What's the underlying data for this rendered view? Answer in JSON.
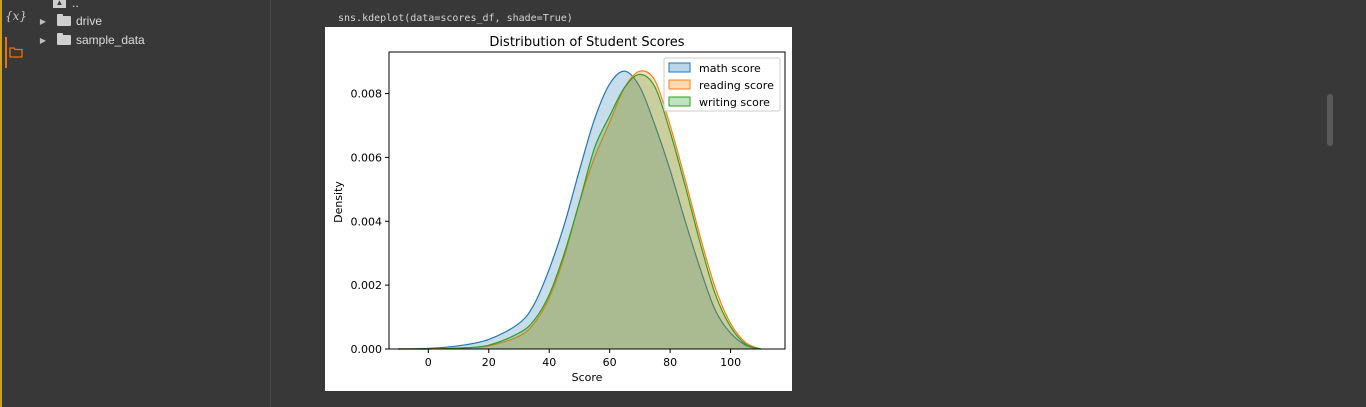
{
  "rail": {
    "variables_icon": "{x}",
    "files_icon": "folder-icon"
  },
  "files": {
    "up_label": "..",
    "items": [
      {
        "label": "drive"
      },
      {
        "label": "sample_data"
      }
    ]
  },
  "cell": {
    "code": "sns.kdeplot(data=scores_df, shade=True)"
  },
  "colors": {
    "math": "#1f77b4",
    "reading": "#ff7f0e",
    "writing": "#2ca02c"
  },
  "chart_data": {
    "type": "area",
    "title": "Distribution of Student Scores",
    "xlabel": "Score",
    "ylabel": "Density",
    "xlim": [
      -13,
      118
    ],
    "ylim": [
      0,
      0.0093
    ],
    "xticks": [
      0,
      20,
      40,
      60,
      80,
      100
    ],
    "yticks": [
      0.0,
      0.002,
      0.004,
      0.006,
      0.008
    ],
    "ytick_labels": [
      "0.000",
      "0.002",
      "0.004",
      "0.006",
      "0.008"
    ],
    "legend_position": "top-right",
    "grid": false,
    "x": [
      -10,
      0,
      10,
      20,
      30,
      35,
      40,
      45,
      50,
      55,
      60,
      65,
      70,
      75,
      80,
      85,
      90,
      95,
      100,
      105,
      110
    ],
    "series": [
      {
        "name": "math score",
        "values": [
          0.0,
          2e-05,
          0.0001,
          0.0003,
          0.0008,
          0.0014,
          0.0025,
          0.0039,
          0.0056,
          0.0072,
          0.0083,
          0.0087,
          0.0082,
          0.007,
          0.0056,
          0.004,
          0.0025,
          0.0012,
          0.0005,
          0.00012,
          0.0
        ]
      },
      {
        "name": "reading score",
        "values": [
          0.0,
          0.0,
          3e-05,
          0.0001,
          0.0004,
          0.0008,
          0.0016,
          0.0029,
          0.0046,
          0.006,
          0.0071,
          0.0082,
          0.0087,
          0.0084,
          0.007,
          0.0053,
          0.0035,
          0.0019,
          0.0008,
          0.0002,
          0.0
        ]
      },
      {
        "name": "writing score",
        "values": [
          0.0,
          0.0,
          3e-05,
          0.00012,
          0.0005,
          0.0009,
          0.0017,
          0.003,
          0.0046,
          0.0063,
          0.0073,
          0.0082,
          0.0086,
          0.0082,
          0.0068,
          0.0051,
          0.0033,
          0.0017,
          0.0007,
          0.00015,
          0.0
        ]
      }
    ]
  }
}
